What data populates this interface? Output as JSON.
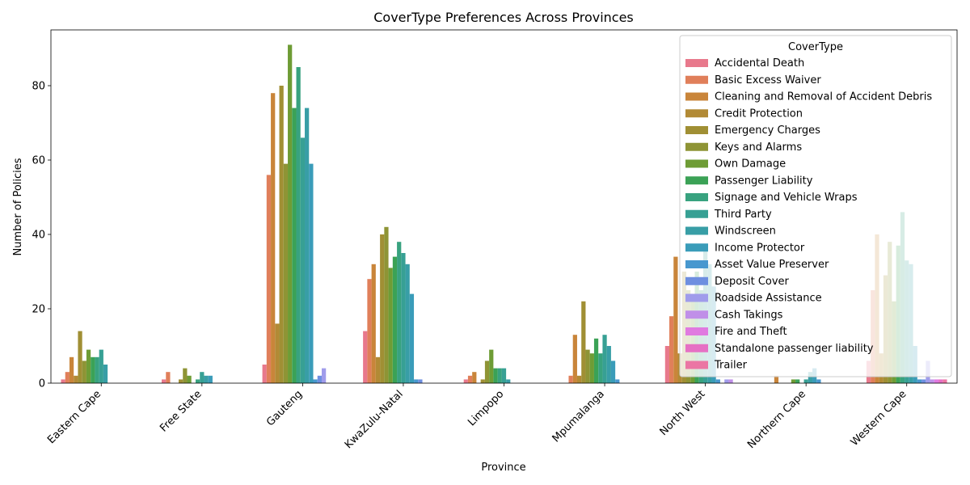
{
  "chart_data": {
    "type": "bar",
    "title": "CoverType Preferences Across Provinces",
    "xlabel": "Province",
    "ylabel": "Number of Policies",
    "ylim": [
      0,
      95
    ],
    "yticks": [
      0,
      20,
      40,
      60,
      80
    ],
    "legend_title": "CoverType",
    "legend_position": "top-right",
    "grid": false,
    "categories": [
      "Eastern Cape",
      "Free State",
      "Gauteng",
      "KwaZulu-Natal",
      "Limpopo",
      "Mpumalanga",
      "North West",
      "Northern Cape",
      "Western Cape"
    ],
    "series": [
      {
        "name": "Accidental Death",
        "color": "#e8798c",
        "values": [
          1,
          1,
          5,
          14,
          1,
          0,
          10,
          0,
          6
        ]
      },
      {
        "name": "Basic Excess Waiver",
        "color": "#e07f5a",
        "values": [
          3,
          3,
          56,
          28,
          2,
          2,
          18,
          0,
          25
        ]
      },
      {
        "name": "Cleaning and Removal of Accident Debris",
        "color": "#c9853a",
        "values": [
          7,
          0,
          78,
          32,
          3,
          13,
          34,
          2,
          40
        ]
      },
      {
        "name": "Credit Protection",
        "color": "#b28a35",
        "values": [
          2,
          0,
          16,
          7,
          0,
          2,
          8,
          0,
          8
        ]
      },
      {
        "name": "Emergency Charges",
        "color": "#a08f34",
        "values": [
          14,
          1,
          80,
          40,
          1,
          22,
          30,
          0,
          29
        ]
      },
      {
        "name": "Keys and Alarms",
        "color": "#8e9435",
        "values": [
          6,
          4,
          59,
          42,
          6,
          9,
          25,
          0,
          38
        ]
      },
      {
        "name": "Own Damage",
        "color": "#6e9c35",
        "values": [
          9,
          2,
          91,
          31,
          9,
          8,
          22,
          1,
          22
        ]
      },
      {
        "name": "Passenger Liability",
        "color": "#3ba256",
        "values": [
          7,
          0,
          74,
          34,
          4,
          12,
          30,
          1,
          37
        ]
      },
      {
        "name": "Signage and Vehicle Wraps",
        "color": "#38a27f",
        "values": [
          7,
          1,
          85,
          38,
          4,
          8,
          25,
          0,
          46
        ]
      },
      {
        "name": "Third Party",
        "color": "#37a094",
        "values": [
          9,
          3,
          66,
          35,
          4,
          13,
          36,
          1,
          33
        ]
      },
      {
        "name": "Windscreen",
        "color": "#389ea6",
        "values": [
          5,
          2,
          74,
          32,
          1,
          10,
          32,
          3,
          32
        ]
      },
      {
        "name": "Income Protector",
        "color": "#3a9cb9",
        "values": [
          0,
          2,
          59,
          24,
          0,
          6,
          26,
          4,
          10
        ]
      },
      {
        "name": "Asset Value Preserver",
        "color": "#4898cf",
        "values": [
          0,
          0,
          1,
          1,
          0,
          1,
          1,
          1,
          1
        ]
      },
      {
        "name": "Deposit Cover",
        "color": "#6e8fe0",
        "values": [
          0,
          0,
          2,
          1,
          0,
          0,
          0,
          0,
          1
        ]
      },
      {
        "name": "Roadside Assistance",
        "color": "#a09ceb",
        "values": [
          0,
          0,
          4,
          0,
          0,
          0,
          1,
          0,
          6
        ]
      },
      {
        "name": "Cash Takings",
        "color": "#c08fe8",
        "values": [
          0,
          0,
          0,
          0,
          0,
          0,
          1,
          0,
          1
        ]
      },
      {
        "name": "Fire and Theft",
        "color": "#e07ae0",
        "values": [
          0,
          0,
          0,
          0,
          0,
          0,
          0,
          0,
          1
        ]
      },
      {
        "name": "Standalone passenger liability",
        "color": "#e670c4",
        "values": [
          0,
          0,
          0,
          0,
          0,
          0,
          0,
          0,
          1
        ]
      },
      {
        "name": "Trailer",
        "color": "#eb76a4",
        "values": [
          0,
          0,
          0,
          0,
          0,
          0,
          0,
          0,
          1
        ]
      }
    ]
  }
}
